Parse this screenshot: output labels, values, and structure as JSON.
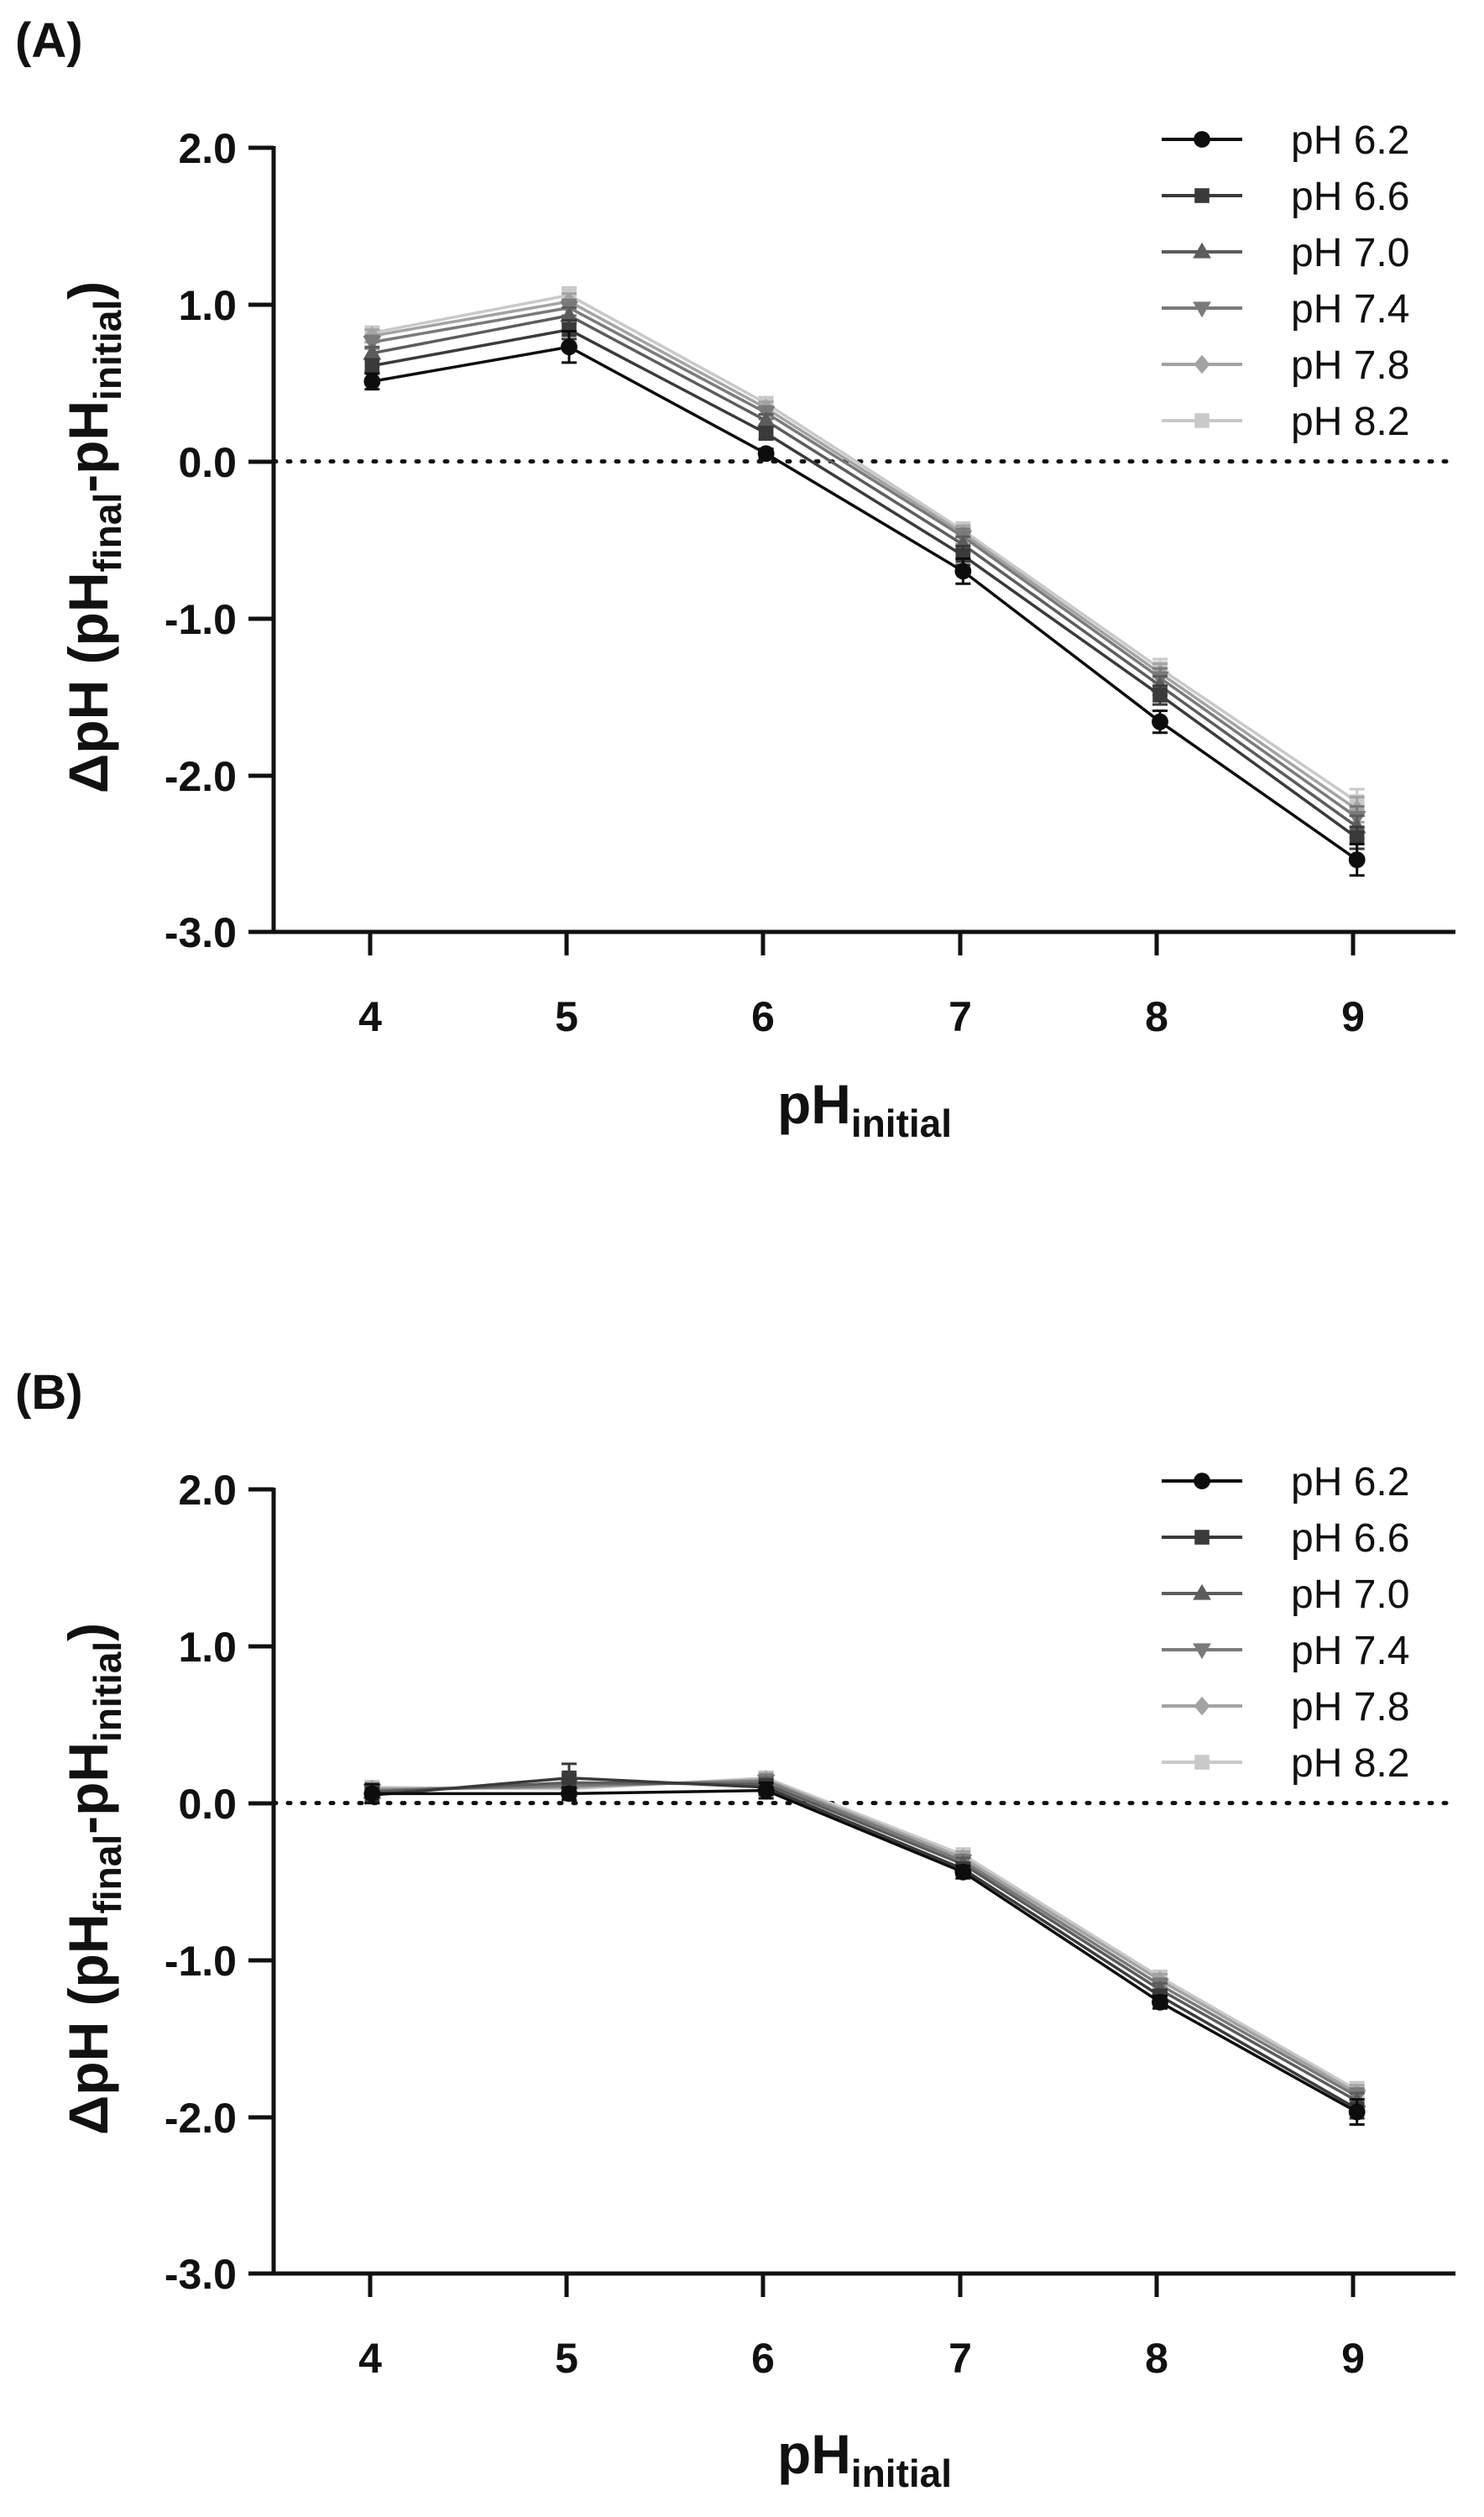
{
  "chart_data": [
    {
      "type": "line",
      "panel_label": "(A)",
      "title": "",
      "xlabel": {
        "main": "pH",
        "sub": "initial"
      },
      "ylabel": {
        "prefix": "ΔpH (pH",
        "sub1": "final",
        "mid": "-pH",
        "sub2": "initial",
        "suffix": ")"
      },
      "x": [
        4,
        5,
        6,
        7,
        8,
        9
      ],
      "x_tick_labels": [
        "4",
        "5",
        "6",
        "7",
        "8",
        "9"
      ],
      "xlim": [
        3.5,
        9.5
      ],
      "ylim": [
        -3.0,
        2.0
      ],
      "y_ticks": [
        2.0,
        1.0,
        0.0,
        -1.0,
        -2.0,
        -3.0
      ],
      "y_tick_labels": [
        "2.0",
        "1.0",
        "0.0",
        "-1.0",
        "-2.0",
        "-3.0"
      ],
      "reference_line": {
        "y": 0,
        "style": "dotted"
      },
      "legend_position": "top-right",
      "series": [
        {
          "name": "pH 6.2",
          "color": "#0d0d0d",
          "marker": "circle",
          "values": [
            0.51,
            0.73,
            0.05,
            -0.7,
            -1.66,
            -2.54
          ],
          "errors": [
            0.05,
            0.1,
            0.03,
            0.08,
            0.07,
            0.1
          ]
        },
        {
          "name": "pH 6.6",
          "color": "#3a3a3a",
          "marker": "square",
          "values": [
            0.61,
            0.84,
            0.18,
            -0.6,
            -1.49,
            -2.4
          ],
          "errors": [
            0.04,
            0.06,
            0.04,
            0.06,
            0.06,
            0.07
          ]
        },
        {
          "name": "pH 7.0",
          "color": "#5c5c5c",
          "marker": "triangle",
          "values": [
            0.69,
            0.93,
            0.26,
            -0.53,
            -1.43,
            -2.33
          ],
          "errors": [
            0.04,
            0.05,
            0.04,
            0.05,
            0.06,
            0.07
          ]
        },
        {
          "name": "pH 7.4",
          "color": "#7a7a7a",
          "marker": "triangle-down",
          "values": [
            0.76,
            0.98,
            0.31,
            -0.48,
            -1.38,
            -2.27
          ],
          "errors": [
            0.04,
            0.05,
            0.04,
            0.05,
            0.06,
            0.07
          ]
        },
        {
          "name": "pH 7.8",
          "color": "#a3a3a3",
          "marker": "diamond",
          "values": [
            0.8,
            1.02,
            0.34,
            -0.46,
            -1.35,
            -2.22
          ],
          "errors": [
            0.04,
            0.05,
            0.04,
            0.05,
            0.06,
            0.08
          ]
        },
        {
          "name": "pH 8.2",
          "color": "#c9c9c9",
          "marker": "square",
          "values": [
            0.82,
            1.06,
            0.37,
            -0.44,
            -1.32,
            -2.17
          ],
          "errors": [
            0.04,
            0.05,
            0.04,
            0.05,
            0.06,
            0.08
          ]
        }
      ]
    },
    {
      "type": "line",
      "panel_label": "(B)",
      "title": "",
      "xlabel": {
        "main": "pH",
        "sub": "initial"
      },
      "ylabel": {
        "prefix": "ΔpH (pH",
        "sub1": "final",
        "mid": "-pH",
        "sub2": "initial",
        "suffix": ")"
      },
      "x": [
        4,
        5,
        6,
        7,
        8,
        9
      ],
      "x_tick_labels": [
        "4",
        "5",
        "6",
        "7",
        "8",
        "9"
      ],
      "xlim": [
        3.5,
        9.5
      ],
      "ylim": [
        -3.0,
        2.0
      ],
      "y_ticks": [
        2.0,
        1.0,
        0.0,
        -1.0,
        -2.0,
        -3.0
      ],
      "y_tick_labels": [
        "2.0",
        "1.0",
        "0.0",
        "-1.0",
        "-2.0",
        "-3.0"
      ],
      "reference_line": {
        "y": 0,
        "style": "dotted"
      },
      "legend_position": "top-right",
      "series": [
        {
          "name": "pH 6.2",
          "color": "#0d0d0d",
          "marker": "circle",
          "values": [
            0.06,
            0.06,
            0.08,
            -0.44,
            -1.27,
            -1.97
          ],
          "errors": [
            0.06,
            0.04,
            0.05,
            0.04,
            0.04,
            0.08
          ]
        },
        {
          "name": "pH 6.6",
          "color": "#3a3a3a",
          "marker": "square",
          "values": [
            0.05,
            0.16,
            0.1,
            -0.42,
            -1.23,
            -1.95
          ],
          "errors": [
            0.05,
            0.09,
            0.05,
            0.04,
            0.04,
            0.06
          ]
        },
        {
          "name": "pH 7.0",
          "color": "#5c5c5c",
          "marker": "triangle",
          "values": [
            0.07,
            0.13,
            0.12,
            -0.39,
            -1.19,
            -1.9
          ],
          "errors": [
            0.04,
            0.05,
            0.04,
            0.04,
            0.04,
            0.05
          ]
        },
        {
          "name": "pH 7.4",
          "color": "#7a7a7a",
          "marker": "triangle-down",
          "values": [
            0.08,
            0.11,
            0.14,
            -0.37,
            -1.16,
            -1.87
          ],
          "errors": [
            0.04,
            0.05,
            0.04,
            0.04,
            0.04,
            0.05
          ]
        },
        {
          "name": "pH 7.8",
          "color": "#a3a3a3",
          "marker": "diamond",
          "values": [
            0.09,
            0.1,
            0.15,
            -0.35,
            -1.13,
            -1.85
          ],
          "errors": [
            0.04,
            0.05,
            0.04,
            0.04,
            0.04,
            0.05
          ]
        },
        {
          "name": "pH 8.2",
          "color": "#c9c9c9",
          "marker": "square",
          "values": [
            0.1,
            0.09,
            0.16,
            -0.33,
            -1.11,
            -1.83
          ],
          "errors": [
            0.04,
            0.05,
            0.04,
            0.04,
            0.04,
            0.05
          ]
        }
      ]
    }
  ]
}
